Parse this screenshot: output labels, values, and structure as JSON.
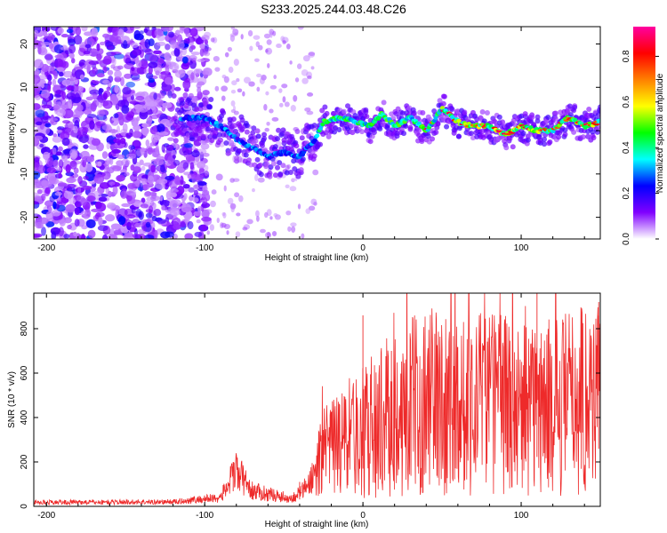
{
  "title": "S233.2025.244.03.48.C26",
  "chart_data": [
    {
      "type": "heatmap",
      "xlabel": "Height of straight line (km)",
      "ylabel": "Frequency (Hz)",
      "xlim": [
        -208,
        150
      ],
      "ylim": [
        -25,
        24
      ],
      "xticks": [
        -200,
        -100,
        0,
        100
      ],
      "yticks": [
        -20,
        -10,
        0,
        10,
        20
      ],
      "colorbar": {
        "label": "Normalized spectral amplitude",
        "range": [
          0,
          0.93
        ],
        "ticks": [
          0.0,
          0.2,
          0.4,
          0.6,
          0.8
        ],
        "colors": [
          "#ffffff",
          "#8000ff",
          "#0000ff",
          "#00ffff",
          "#00ff00",
          "#ffff00",
          "#ff8000",
          "#ff0000",
          "#ff00a0"
        ]
      },
      "ridge_frequency": [
        {
          "x": -115,
          "y": 3
        },
        {
          "x": -100,
          "y": 3
        },
        {
          "x": -90,
          "y": 1
        },
        {
          "x": -80,
          "y": -2
        },
        {
          "x": -70,
          "y": -4
        },
        {
          "x": -60,
          "y": -6
        },
        {
          "x": -50,
          "y": -5
        },
        {
          "x": -40,
          "y": -6
        },
        {
          "x": -30,
          "y": -2
        },
        {
          "x": -25,
          "y": 2
        },
        {
          "x": -15,
          "y": 3
        },
        {
          "x": -5,
          "y": 2
        },
        {
          "x": 5,
          "y": 1
        },
        {
          "x": 12,
          "y": 4
        },
        {
          "x": 20,
          "y": 1
        },
        {
          "x": 30,
          "y": 3
        },
        {
          "x": 40,
          "y": 0
        },
        {
          "x": 50,
          "y": 5
        },
        {
          "x": 60,
          "y": 2
        },
        {
          "x": 70,
          "y": 1
        },
        {
          "x": 80,
          "y": 1
        },
        {
          "x": 90,
          "y": -1
        },
        {
          "x": 100,
          "y": 1
        },
        {
          "x": 110,
          "y": 0
        },
        {
          "x": 120,
          "y": 0
        },
        {
          "x": 130,
          "y": 3
        },
        {
          "x": 140,
          "y": 1
        },
        {
          "x": 150,
          "y": 2
        }
      ]
    },
    {
      "type": "line",
      "xlabel": "Height of straight line (km)",
      "ylabel": "SNR (10 * v/v)",
      "xlim": [
        -208,
        150
      ],
      "ylim": [
        0,
        960
      ],
      "xticks": [
        -200,
        -100,
        0,
        100
      ],
      "yticks": [
        0,
        200,
        400,
        600,
        800
      ],
      "color": "#ee2a2a",
      "envelope": [
        {
          "x": -208,
          "y": 18
        },
        {
          "x": -120,
          "y": 20
        },
        {
          "x": -90,
          "y": 40
        },
        {
          "x": -80,
          "y": 160
        },
        {
          "x": -70,
          "y": 70
        },
        {
          "x": -45,
          "y": 35
        },
        {
          "x": -35,
          "y": 90
        },
        {
          "x": -25,
          "y": 230
        },
        {
          "x": -10,
          "y": 300
        },
        {
          "x": 0,
          "y": 340
        },
        {
          "x": 20,
          "y": 420
        },
        {
          "x": 40,
          "y": 480
        },
        {
          "x": 60,
          "y": 470
        },
        {
          "x": 80,
          "y": 480
        },
        {
          "x": 100,
          "y": 440
        },
        {
          "x": 120,
          "y": 450
        },
        {
          "x": 150,
          "y": 520
        }
      ],
      "peaks": [
        {
          "x": -82,
          "y": 200
        },
        {
          "x": -40,
          "y": 110
        },
        {
          "x": 0,
          "y": 860
        },
        {
          "x": 18,
          "y": 700
        },
        {
          "x": 110,
          "y": 960
        },
        {
          "x": 149,
          "y": 920
        }
      ]
    }
  ]
}
